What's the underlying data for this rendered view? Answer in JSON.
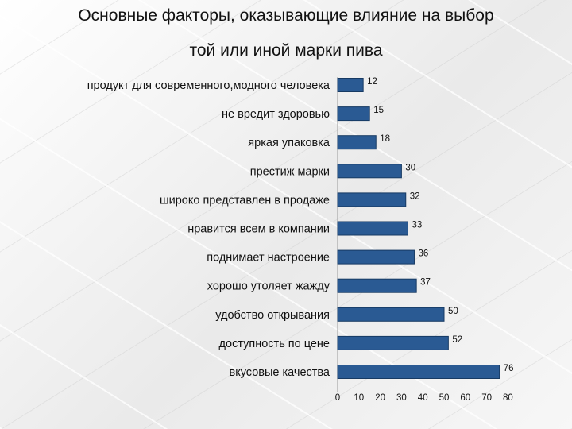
{
  "title_lines": [
    "Основные факторы, оказывающие влияние на выбор",
    "той или иной марки пива"
  ],
  "colors": {
    "bar": "#2a5a93",
    "bar_edge": "#173a63"
  },
  "chart_data": {
    "type": "bar",
    "orientation": "horizontal",
    "title": "Основные факторы, оказывающие влияние на выбор той или иной марки пива",
    "categories": [
      "продукт для современного,модного человека",
      "не вредит здоровью",
      "яркая упаковка",
      "престиж марки",
      "широко представлен в продаже",
      "нравится всем в компании",
      "поднимает настроение",
      "хорошо утоляет жажду",
      "удобство открывания",
      "доступность по цене",
      "вкусовые качества"
    ],
    "values": [
      12,
      15,
      18,
      30,
      32,
      33,
      36,
      37,
      50,
      52,
      76
    ],
    "xlim": [
      0,
      80
    ],
    "xticks": [
      0,
      10,
      20,
      30,
      40,
      50,
      60,
      70,
      80
    ],
    "grid": false,
    "legend": "none",
    "data_labels": true
  }
}
